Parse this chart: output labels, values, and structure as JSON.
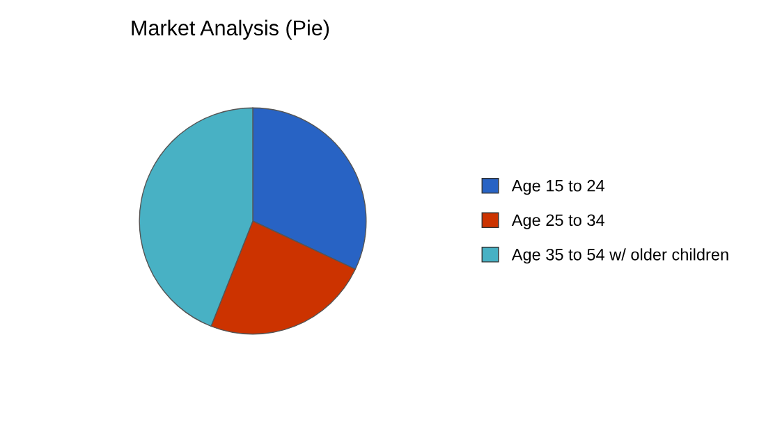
{
  "chart_data": {
    "type": "pie",
    "title": "Market Analysis (Pie)",
    "categories": [
      "Age 15 to 24",
      "Age 25 to 34",
      "Age 35 to 54 w/ older children"
    ],
    "values": [
      32,
      24,
      44
    ],
    "colors": [
      "#2863c4",
      "#cc3300",
      "#48b1c4"
    ],
    "legend": "right"
  }
}
